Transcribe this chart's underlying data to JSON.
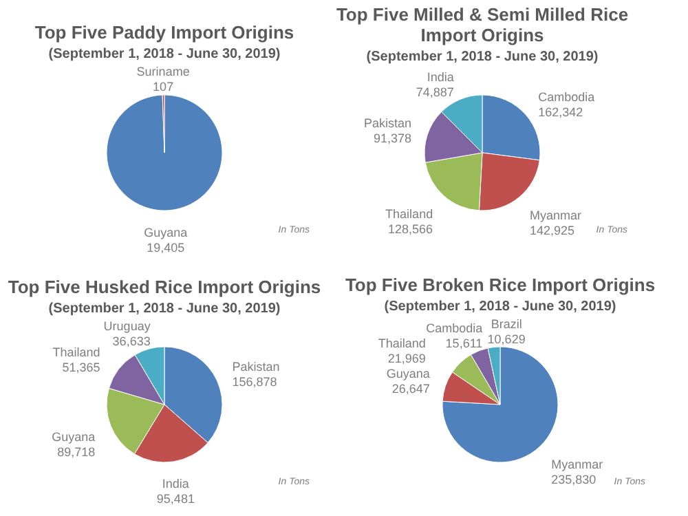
{
  "chart_data": [
    {
      "type": "pie",
      "title": "Top Five Paddy Import Origins",
      "subtitle": "(September 1, 2018 - June 30, 2019)",
      "categories": [
        "Guyana",
        "Suriname"
      ],
      "values": [
        19405,
        107
      ],
      "value_labels": [
        "19,405",
        "107"
      ],
      "colors": [
        "#4f81bd",
        "#c0504d"
      ],
      "annotations": [
        "In Tons"
      ]
    },
    {
      "type": "pie",
      "title": "Top Five Milled & Semi Milled Rice Import Origins",
      "subtitle": "(September 1, 2018 - June 30, 2019)",
      "categories": [
        "Cambodia",
        "Myanmar",
        "Thailand",
        "Pakistan",
        "India"
      ],
      "values": [
        162342,
        142925,
        128566,
        91378,
        74887
      ],
      "value_labels": [
        "162,342",
        "142,925",
        "128,566",
        "91,378",
        "74,887"
      ],
      "colors": [
        "#4f81bd",
        "#c0504d",
        "#9bbb59",
        "#8064a2",
        "#4bacc6"
      ],
      "annotations": [
        "In Tons"
      ]
    },
    {
      "type": "pie",
      "title": "Top Five Husked Rice Import Origins",
      "subtitle": "(September 1, 2018 - June 30, 2019)",
      "categories": [
        "Pakistan",
        "India",
        "Guyana",
        "Thailand",
        "Uruguay"
      ],
      "values": [
        156878,
        95481,
        89718,
        51365,
        36633
      ],
      "value_labels": [
        "156,878",
        "95,481",
        "89,718",
        "51,365",
        "36,633"
      ],
      "colors": [
        "#4f81bd",
        "#c0504d",
        "#9bbb59",
        "#8064a2",
        "#4bacc6"
      ],
      "annotations": [
        "In Tons"
      ]
    },
    {
      "type": "pie",
      "title": "Top Five Broken Rice Import Origins",
      "subtitle": "(September 1, 2018 - June 30, 2019)",
      "categories": [
        "Myanmar",
        "Guyana",
        "Thailand",
        "Cambodia",
        "Brazil"
      ],
      "values": [
        235830,
        26647,
        21969,
        15611,
        10629
      ],
      "value_labels": [
        "235,830",
        "26,647",
        "21,969",
        "15,611",
        "10,629"
      ],
      "colors": [
        "#4f81bd",
        "#c0504d",
        "#9bbb59",
        "#8064a2",
        "#4bacc6"
      ],
      "annotations": [
        "In Tons"
      ]
    }
  ]
}
